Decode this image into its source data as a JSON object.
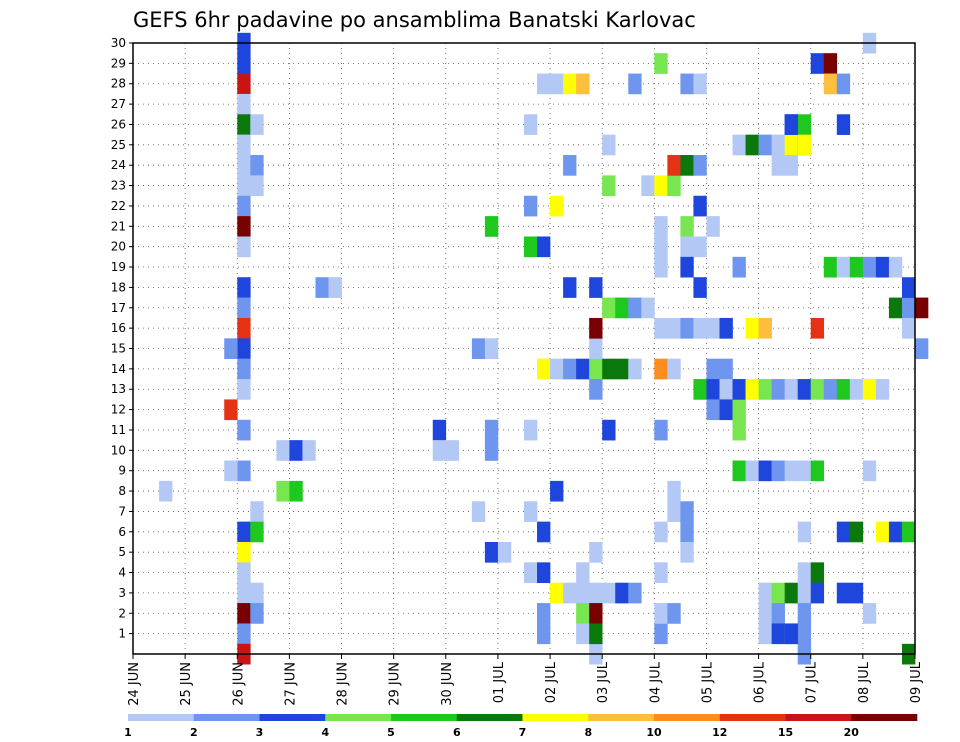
{
  "chart_data": {
    "type": "heatmap",
    "title": "GEFS 6hr padavine po ansamblima Banatski Karlovac",
    "y_ticks": [
      "1",
      "2",
      "3",
      "4",
      "5",
      "6",
      "7",
      "8",
      "9",
      "10",
      "11",
      "12",
      "13",
      "14",
      "15",
      "16",
      "17",
      "18",
      "19",
      "20",
      "21",
      "22",
      "23",
      "24",
      "25",
      "26",
      "27",
      "28",
      "29",
      "30"
    ],
    "x_ticks": [
      "24 JUN",
      "25 JUN",
      "26 JUN",
      "27 JUN",
      "28 JUN",
      "29 JUN",
      "30 JUN",
      "01 JUL",
      "02 JUL",
      "03 JUL",
      "04 JUL",
      "05 JUL",
      "06 JUL",
      "07 JUL",
      "08 JUL",
      "09 JUL"
    ],
    "x_steps_per_day": 4,
    "ylim": [
      0,
      30
    ],
    "grid": true,
    "legend": {
      "position": "bottom",
      "labels": [
        "1",
        "2",
        "3",
        "4",
        "5",
        "6",
        "7",
        "8",
        "10",
        "12",
        "15",
        "20"
      ],
      "colors": [
        "#b4c8f5",
        "#6e96ee",
        "#1e46dc",
        "#78e650",
        "#1ec81e",
        "#0a780a",
        "#ffff00",
        "#ffbe3c",
        "#ff8c1e",
        "#e63214",
        "#c81414",
        "#780000"
      ]
    },
    "cells": [
      [
        8,
        30,
        2
      ],
      [
        8,
        29,
        2
      ],
      [
        8,
        28,
        10
      ],
      [
        8,
        27,
        0
      ],
      [
        8,
        26,
        5
      ],
      [
        8,
        25,
        0
      ],
      [
        8,
        24,
        0
      ],
      [
        8,
        23,
        0
      ],
      [
        8,
        22,
        1
      ],
      [
        8,
        21,
        11
      ],
      [
        8,
        20,
        0
      ],
      [
        8,
        18,
        2
      ],
      [
        8,
        17,
        1
      ],
      [
        8,
        16,
        9
      ],
      [
        8,
        15,
        2
      ],
      [
        8,
        14,
        1
      ],
      [
        8,
        13,
        0
      ],
      [
        7,
        12,
        9
      ],
      [
        8,
        11,
        1
      ],
      [
        8,
        9,
        1
      ],
      [
        8,
        6,
        2
      ],
      [
        8,
        5,
        6
      ],
      [
        8,
        4,
        0
      ],
      [
        8,
        3,
        0
      ],
      [
        8,
        2,
        11
      ],
      [
        8,
        1,
        1
      ],
      [
        8,
        0,
        10
      ],
      [
        9,
        26,
        0
      ],
      [
        9,
        24,
        1
      ],
      [
        9,
        23,
        0
      ],
      [
        9,
        7,
        0
      ],
      [
        9,
        6,
        4
      ],
      [
        9,
        3,
        0
      ],
      [
        9,
        2,
        1
      ],
      [
        7,
        15,
        1
      ],
      [
        7,
        9,
        0
      ],
      [
        2,
        8,
        0
      ],
      [
        11,
        10,
        0
      ],
      [
        12,
        10,
        2
      ],
      [
        13,
        10,
        0
      ],
      [
        11,
        8,
        3
      ],
      [
        12,
        8,
        4
      ],
      [
        14,
        18,
        1
      ],
      [
        15,
        18,
        0
      ],
      [
        23,
        11,
        2
      ],
      [
        23,
        10,
        0
      ],
      [
        24,
        10,
        0
      ],
      [
        26,
        15,
        1
      ],
      [
        27,
        15,
        0
      ],
      [
        26,
        7,
        0
      ],
      [
        27,
        21,
        4
      ],
      [
        27,
        11,
        1
      ],
      [
        27,
        10,
        1
      ],
      [
        27,
        5,
        2
      ],
      [
        28,
        5,
        0
      ],
      [
        31,
        28,
        0
      ],
      [
        32,
        28,
        0
      ],
      [
        33,
        28,
        6
      ],
      [
        34,
        28,
        7
      ],
      [
        30,
        26,
        0
      ],
      [
        30,
        22,
        1
      ],
      [
        30,
        20,
        4
      ],
      [
        31,
        20,
        2
      ],
      [
        31,
        14,
        6
      ],
      [
        32,
        14,
        0
      ],
      [
        30,
        11,
        0
      ],
      [
        30,
        7,
        0
      ],
      [
        32,
        8,
        2
      ],
      [
        31,
        6,
        2
      ],
      [
        30,
        4,
        0
      ],
      [
        31,
        4,
        2
      ],
      [
        31,
        2,
        1
      ],
      [
        31,
        1,
        1
      ],
      [
        32,
        22,
        6
      ],
      [
        33,
        14,
        1
      ],
      [
        34,
        14,
        2
      ],
      [
        35,
        14,
        3
      ],
      [
        36,
        14,
        5
      ],
      [
        33,
        18,
        2
      ],
      [
        32,
        3,
        6
      ],
      [
        33,
        3,
        0
      ],
      [
        34,
        3,
        0
      ],
      [
        34,
        4,
        0
      ],
      [
        34,
        2,
        3
      ],
      [
        34,
        1,
        0
      ],
      [
        33,
        24,
        1
      ],
      [
        35,
        18,
        2
      ],
      [
        35,
        15,
        0
      ],
      [
        35,
        13,
        1
      ],
      [
        35,
        16,
        11
      ],
      [
        35,
        3,
        0
      ],
      [
        35,
        5,
        0
      ],
      [
        35,
        0,
        0
      ],
      [
        35,
        2,
        11
      ],
      [
        35,
        1,
        5
      ],
      [
        36,
        25,
        0
      ],
      [
        36,
        23,
        3
      ],
      [
        36,
        17,
        3
      ],
      [
        37,
        17,
        4
      ],
      [
        36,
        11,
        2
      ],
      [
        36,
        3,
        0
      ],
      [
        37,
        3,
        2
      ],
      [
        38,
        3,
        1
      ],
      [
        37,
        14,
        5
      ],
      [
        38,
        14,
        0
      ],
      [
        38,
        17,
        1
      ],
      [
        39,
        17,
        0
      ],
      [
        38,
        28,
        1
      ],
      [
        39,
        23,
        0
      ],
      [
        40,
        23,
        6
      ],
      [
        41,
        23,
        3
      ],
      [
        40,
        14,
        8
      ],
      [
        41,
        14,
        0
      ],
      [
        40,
        29,
        3
      ],
      [
        40,
        21,
        0
      ],
      [
        40,
        20,
        0
      ],
      [
        40,
        19,
        0
      ],
      [
        40,
        16,
        0
      ],
      [
        40,
        11,
        1
      ],
      [
        40,
        6,
        0
      ],
      [
        40,
        4,
        0
      ],
      [
        40,
        1,
        1
      ],
      [
        40,
        2,
        0
      ],
      [
        41,
        24,
        9
      ],
      [
        41,
        16,
        0
      ],
      [
        41,
        8,
        0
      ],
      [
        41,
        7,
        0
      ],
      [
        41,
        2,
        1
      ],
      [
        42,
        24,
        5
      ],
      [
        42,
        21,
        3
      ],
      [
        42,
        20,
        0
      ],
      [
        42,
        19,
        2
      ],
      [
        42,
        16,
        1
      ],
      [
        42,
        7,
        1
      ],
      [
        42,
        6,
        1
      ],
      [
        42,
        5,
        0
      ],
      [
        42,
        28,
        1
      ],
      [
        43,
        28,
        0
      ],
      [
        43,
        24,
        1
      ],
      [
        43,
        22,
        2
      ],
      [
        43,
        20,
        0
      ],
      [
        43,
        18,
        2
      ],
      [
        44,
        21,
        0
      ],
      [
        43,
        16,
        0
      ],
      [
        44,
        16,
        0
      ],
      [
        45,
        16,
        0
      ],
      [
        44,
        14,
        1
      ],
      [
        45,
        14,
        1
      ],
      [
        43,
        13,
        4
      ],
      [
        44,
        13,
        2
      ],
      [
        44,
        12,
        1
      ],
      [
        45,
        13,
        0
      ],
      [
        45,
        12,
        2
      ],
      [
        46,
        12,
        3
      ],
      [
        46,
        11,
        3
      ],
      [
        46,
        25,
        0
      ],
      [
        47,
        25,
        5
      ],
      [
        48,
        25,
        1
      ],
      [
        49,
        25,
        0
      ],
      [
        50,
        25,
        6
      ],
      [
        51,
        25,
        4
      ],
      [
        46,
        19,
        1
      ],
      [
        45,
        16,
        2
      ],
      [
        47,
        16,
        6
      ],
      [
        48,
        16,
        7
      ],
      [
        46,
        13,
        2
      ],
      [
        47,
        13,
        6
      ],
      [
        48,
        13,
        3
      ],
      [
        49,
        13,
        1
      ],
      [
        50,
        13,
        0
      ],
      [
        51,
        13,
        2
      ],
      [
        52,
        13,
        3
      ],
      [
        53,
        13,
        1
      ],
      [
        54,
        13,
        4
      ],
      [
        55,
        13,
        0
      ],
      [
        56,
        13,
        6
      ],
      [
        57,
        13,
        0
      ],
      [
        46,
        9,
        4
      ],
      [
        47,
        9,
        0
      ],
      [
        48,
        9,
        2
      ],
      [
        49,
        9,
        1
      ],
      [
        50,
        9,
        0
      ],
      [
        51,
        9,
        0
      ],
      [
        52,
        9,
        4
      ],
      [
        48,
        3,
        0
      ],
      [
        49,
        3,
        3
      ],
      [
        50,
        3,
        5
      ],
      [
        51,
        3,
        0
      ],
      [
        48,
        2,
        0
      ],
      [
        49,
        2,
        1
      ],
      [
        48,
        1,
        0
      ],
      [
        49,
        1,
        2
      ],
      [
        50,
        1,
        1
      ],
      [
        51,
        1,
        1
      ],
      [
        50,
        26,
        2
      ],
      [
        51,
        26,
        4
      ],
      [
        50,
        26,
        2
      ],
      [
        51,
        25,
        6
      ],
      [
        50,
        24,
        0
      ],
      [
        49,
        24,
        0
      ],
      [
        52,
        16,
        9
      ],
      [
        52,
        29,
        2
      ],
      [
        53,
        29,
        11
      ],
      [
        53,
        28,
        7
      ],
      [
        54,
        28,
        1
      ],
      [
        51,
        6,
        0
      ],
      [
        51,
        4,
        0
      ],
      [
        52,
        4,
        5
      ],
      [
        52,
        3,
        2
      ],
      [
        51,
        2,
        1
      ],
      [
        51,
        0,
        1
      ],
      [
        50,
        1,
        2
      ],
      [
        53,
        19,
        4
      ],
      [
        54,
        19,
        0
      ],
      [
        55,
        19,
        4
      ],
      [
        56,
        19,
        1
      ],
      [
        57,
        19,
        2
      ],
      [
        58,
        19,
        0
      ],
      [
        54,
        26,
        2
      ],
      [
        54,
        6,
        2
      ],
      [
        55,
        6,
        5
      ],
      [
        54,
        3,
        2
      ],
      [
        55,
        3,
        2
      ],
      [
        56,
        30,
        0
      ],
      [
        56,
        2,
        0
      ],
      [
        56,
        9,
        0
      ],
      [
        58,
        17,
        5
      ],
      [
        59,
        17,
        1
      ],
      [
        59,
        18,
        2
      ],
      [
        59,
        16,
        0
      ],
      [
        60,
        17,
        11
      ],
      [
        60,
        15,
        1
      ],
      [
        57,
        6,
        6
      ],
      [
        58,
        6,
        2
      ],
      [
        59,
        6,
        4
      ],
      [
        59,
        0,
        5
      ]
    ]
  }
}
